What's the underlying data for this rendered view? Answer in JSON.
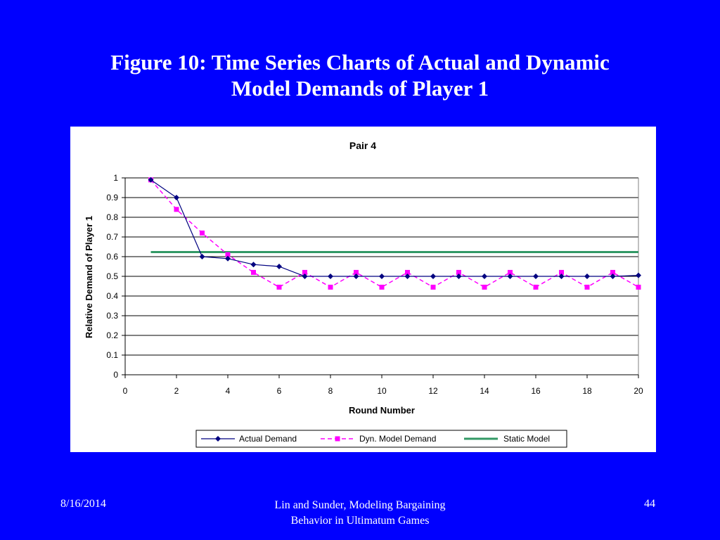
{
  "slide": {
    "title_line1": "Figure 10: Time Series Charts of Actual and Dynamic",
    "title_line2": "Model Demands of Player 1"
  },
  "footer": {
    "date": "8/16/2014",
    "center_line1": "Lin and Sunder, Modeling Bargaining",
    "center_line2": "Behavior in Ultimatum Games",
    "page_number": "44"
  },
  "colors": {
    "background": "#0000ff",
    "actual": "#000080",
    "dynamic": "#ff00ff",
    "static": "#339966"
  },
  "chart_data": {
    "type": "line",
    "title": "Pair 4",
    "xlabel": "Round Number",
    "ylabel": "Relative Demand of Player 1",
    "xlim": [
      0,
      20
    ],
    "ylim": [
      0,
      1
    ],
    "xticks": [
      0,
      2,
      4,
      6,
      8,
      10,
      12,
      14,
      16,
      18,
      20
    ],
    "yticks": [
      0,
      0.1,
      0.2,
      0.3,
      0.4,
      0.5,
      0.6,
      0.7,
      0.8,
      0.9,
      1
    ],
    "grid": "horizontal",
    "legend_position": "bottom",
    "series": [
      {
        "name": "Actual Demand",
        "marker": "diamond",
        "style": "solid",
        "x": [
          1,
          2,
          3,
          4,
          5,
          6,
          7,
          8,
          9,
          10,
          11,
          12,
          13,
          14,
          15,
          16,
          17,
          18,
          19,
          20
        ],
        "y": [
          0.99,
          0.9,
          0.6,
          0.59,
          0.56,
          0.55,
          0.5,
          0.5,
          0.5,
          0.5,
          0.5,
          0.5,
          0.5,
          0.5,
          0.5,
          0.5,
          0.5,
          0.5,
          0.5,
          0.505
        ]
      },
      {
        "name": "Dyn. Model Demand",
        "marker": "square",
        "style": "dashed",
        "x": [
          1,
          2,
          3,
          4,
          5,
          6,
          7,
          8,
          9,
          10,
          11,
          12,
          13,
          14,
          15,
          16,
          17,
          18,
          19,
          20
        ],
        "y": [
          0.99,
          0.84,
          0.72,
          0.61,
          0.52,
          0.445,
          0.52,
          0.445,
          0.52,
          0.445,
          0.52,
          0.445,
          0.52,
          0.445,
          0.52,
          0.445,
          0.52,
          0.445,
          0.52,
          0.445
        ]
      },
      {
        "name": "Static Model",
        "marker": "none",
        "style": "solid",
        "x": [
          1,
          20
        ],
        "y": [
          0.623,
          0.623
        ]
      }
    ]
  }
}
